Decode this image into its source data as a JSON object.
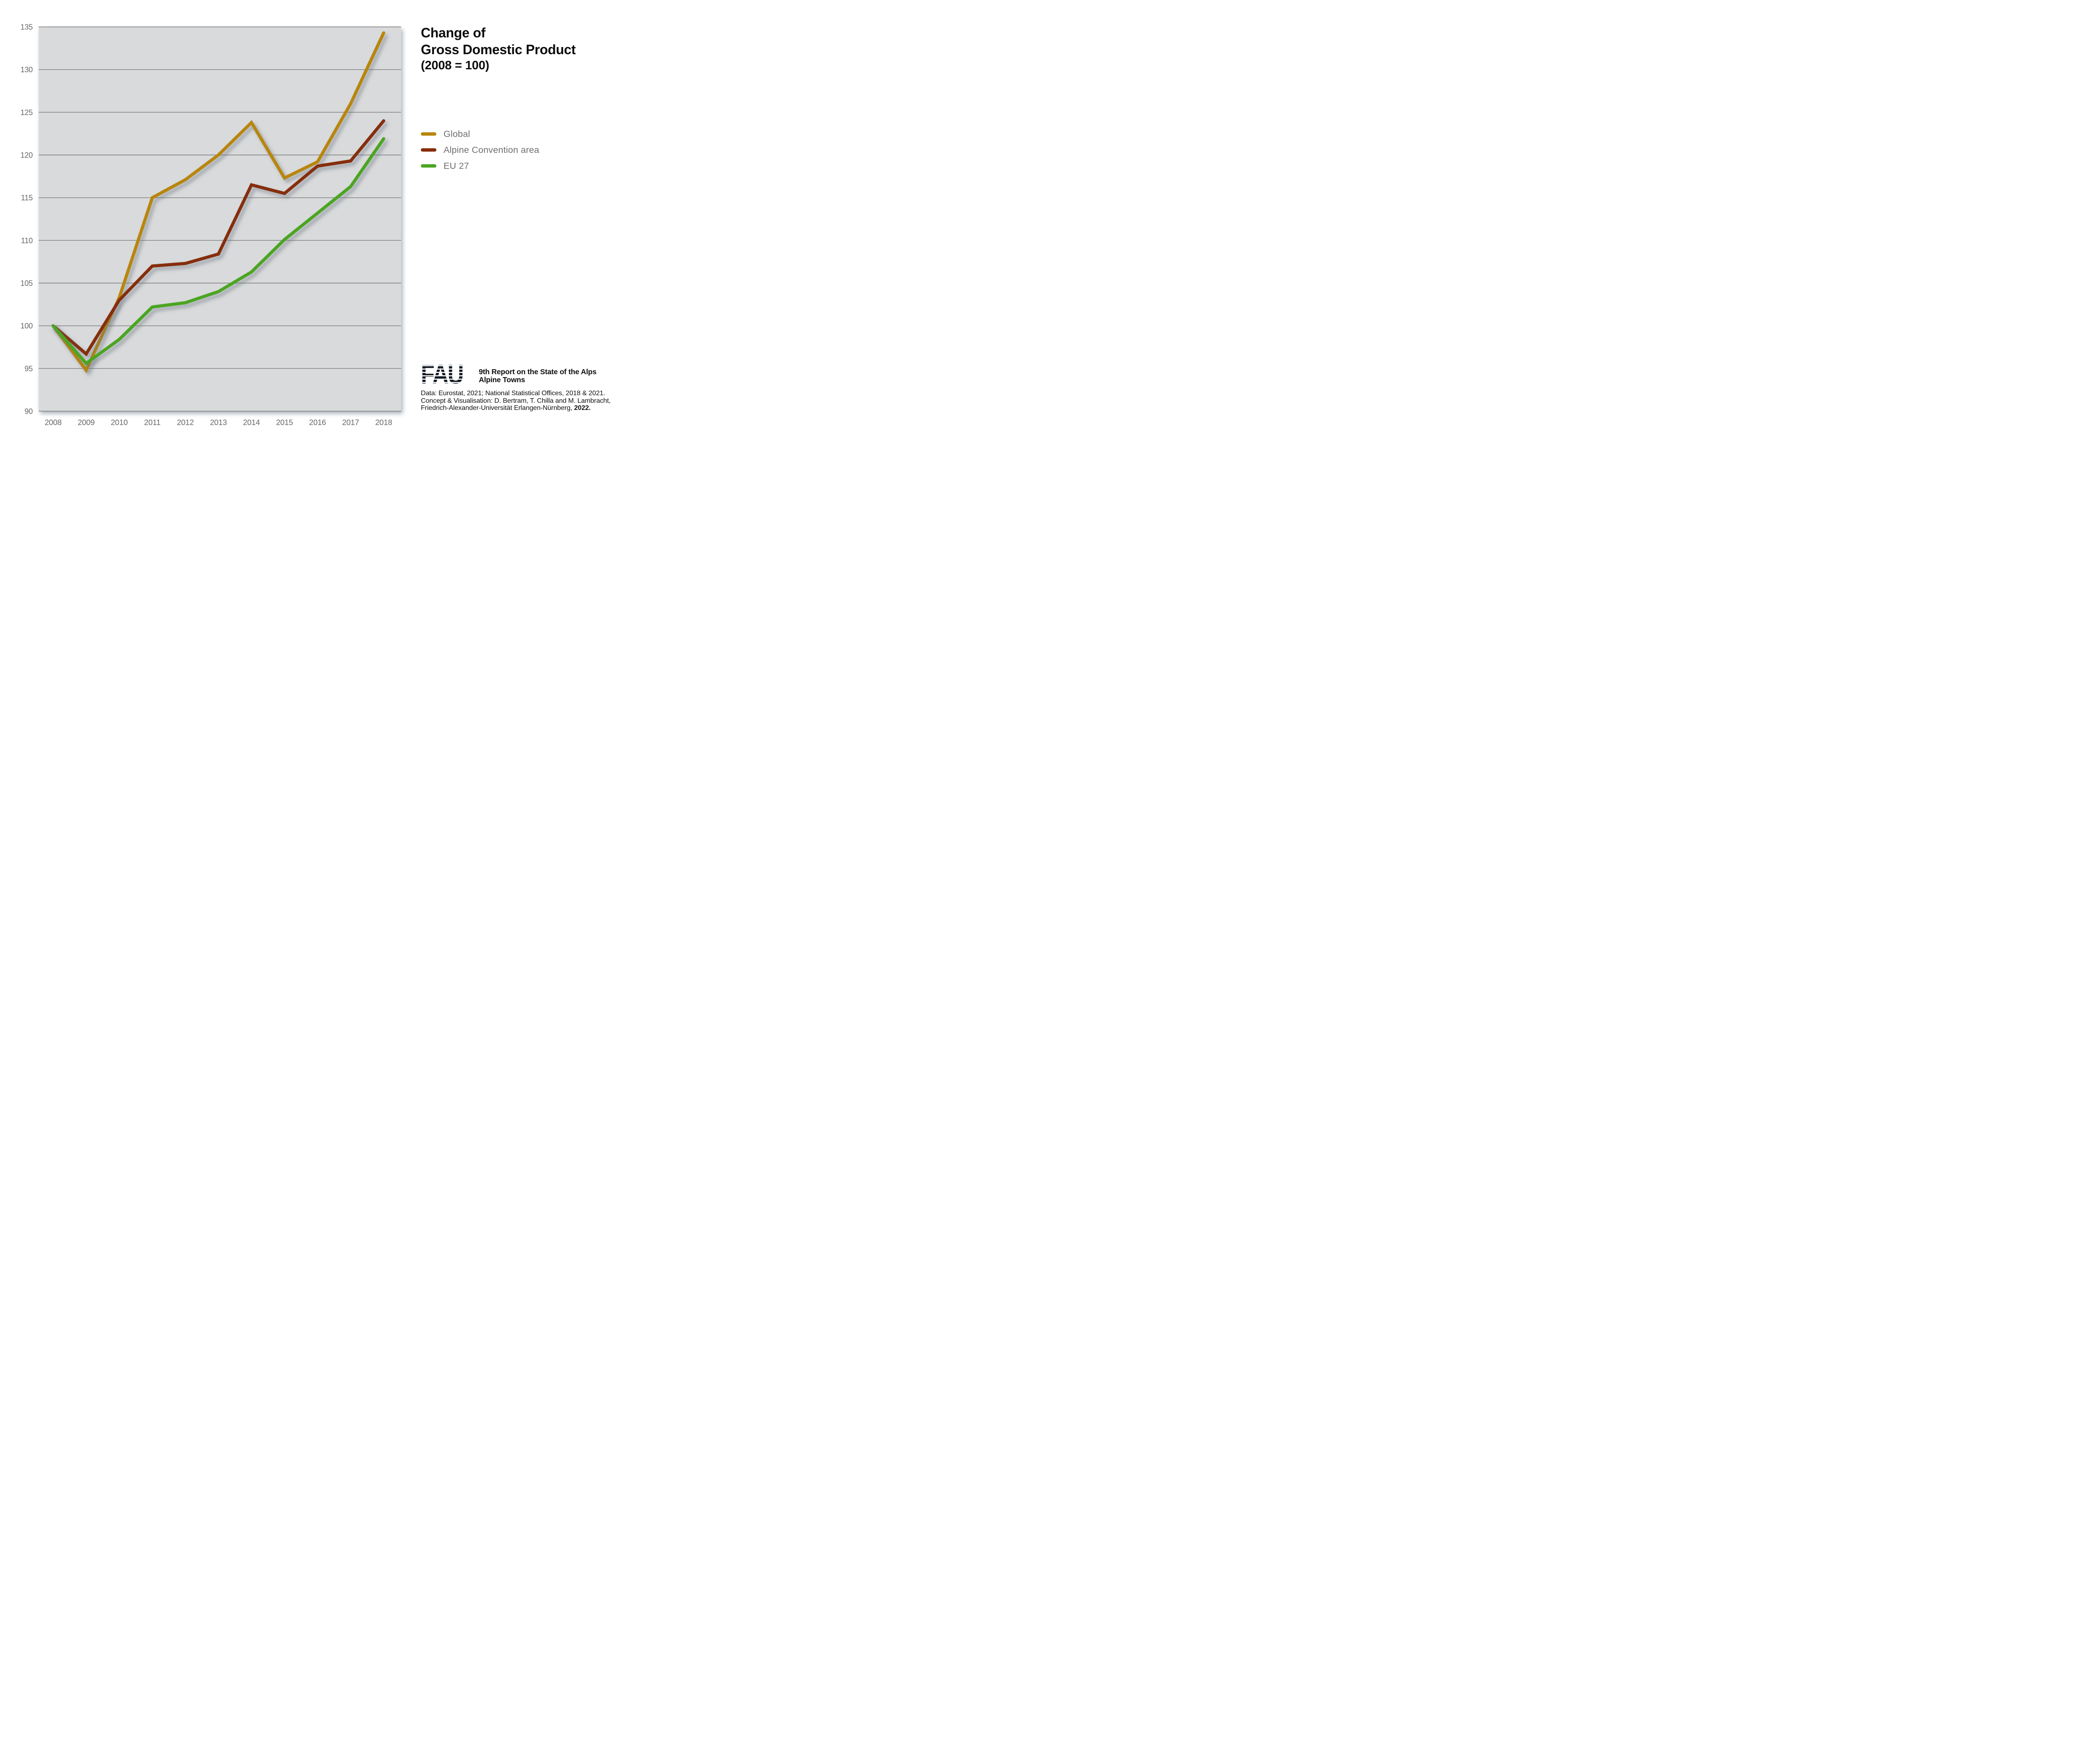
{
  "title": {
    "line1": "Change of",
    "line2": "Gross Domestic Product",
    "line3": "(2008 = 100)"
  },
  "legend": {
    "items": [
      {
        "label": "Global",
        "color": "#B8860B"
      },
      {
        "label": "Alpine Convention area",
        "color": "#862E0C"
      },
      {
        "label": "EU 27",
        "color": "#4CA522"
      }
    ]
  },
  "chart_data": {
    "type": "line",
    "title": "Change of Gross Domestic Product (2008 = 100)",
    "x": [
      2008,
      2009,
      2010,
      2011,
      2012,
      2013,
      2014,
      2015,
      2016,
      2017,
      2018
    ],
    "series": [
      {
        "name": "Global",
        "color": "#B8860B",
        "values": [
          100,
          94.8,
          103.3,
          115.0,
          117.1,
          120.0,
          123.8,
          117.3,
          119.2,
          126.0,
          134.3
        ]
      },
      {
        "name": "Alpine Convention area",
        "color": "#862E0C",
        "values": [
          100,
          96.7,
          103.0,
          107.0,
          107.3,
          108.4,
          116.5,
          115.5,
          118.7,
          119.3,
          124.0
        ]
      },
      {
        "name": "EU 27",
        "color": "#4CA522",
        "values": [
          100,
          95.6,
          98.4,
          102.2,
          102.7,
          104.0,
          106.3,
          110.1,
          113.2,
          116.3,
          121.9
        ]
      }
    ],
    "ylim": [
      90,
      135
    ],
    "y_ticks": [
      90,
      95,
      100,
      105,
      110,
      115,
      120,
      125,
      130,
      135
    ],
    "grid": "horizontal-only",
    "legend_position": "right",
    "plot_background": "#D9DADB",
    "gridline_color": "#7A7A7A",
    "tick_label_color": "#696969"
  },
  "footer": {
    "logo_text": "FAU",
    "logo_color": "#111820",
    "report_line1": "9th Report on the State of the Alps",
    "report_line2": "Alpine Towns",
    "credit_line1": "Data: Eurostat, 2021; National Statistical Offices, 2018 & 2021.",
    "credit_line2": "Concept & Visualisation: D. Bertram, T. Chilla and M. Lambracht,",
    "credit_line3_prefix": "Friedrich-Alexander-Universität Erlangen-Nürnberg,",
    "credit_line3_bold": "2022."
  }
}
